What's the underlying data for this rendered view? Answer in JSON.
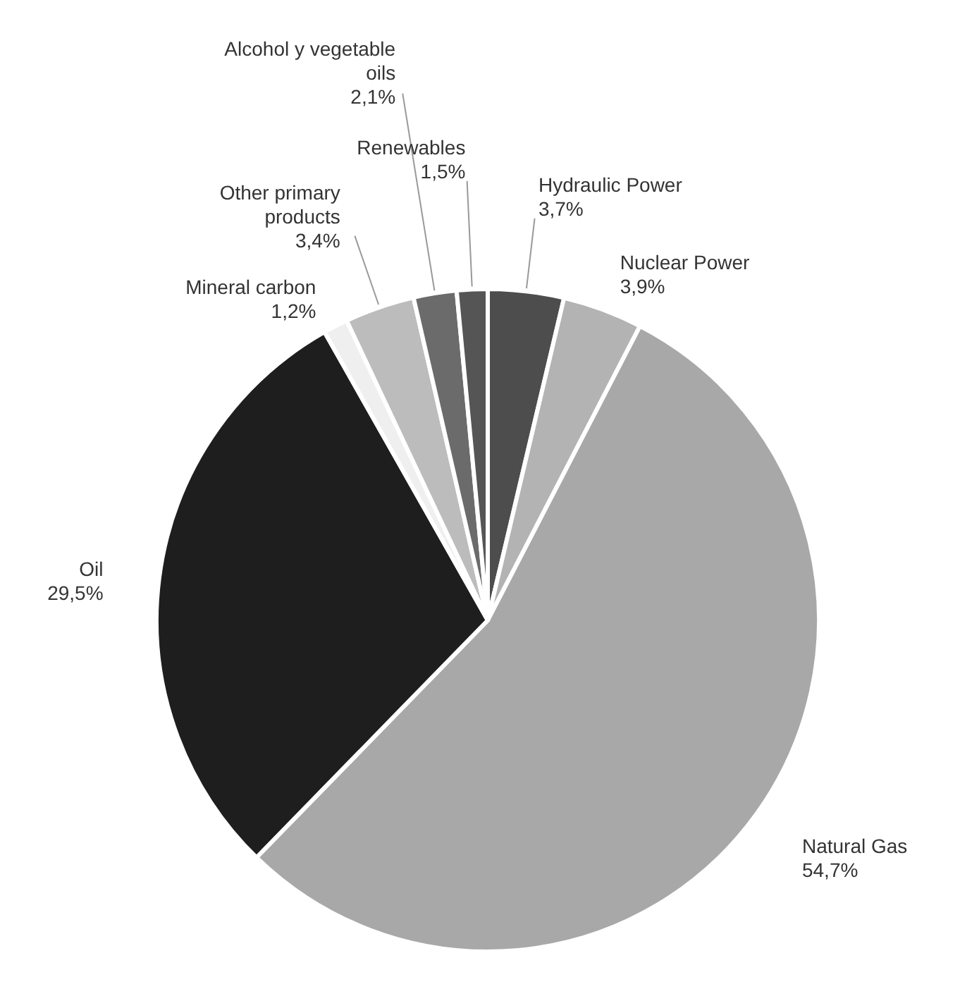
{
  "chart_data": {
    "type": "pie",
    "categories": [
      "Hydraulic Power",
      "Nuclear Power",
      "Natural Gas",
      "Oil",
      "Mineral carbon",
      "Other primary products",
      "Alcohol y vegetable oils",
      "Renewables"
    ],
    "values": [
      3.7,
      3.9,
      54.7,
      29.5,
      1.2,
      3.4,
      2.1,
      1.5
    ],
    "value_labels": [
      "3,7%",
      "3,9%",
      "54,7%",
      "29,5%",
      "1,2%",
      "3,4%",
      "2,1%",
      "1,5%"
    ],
    "colors": [
      "#4d4d4d",
      "#b3b3b3",
      "#a8a8a8",
      "#1e1e1e",
      "#efefef",
      "#bcbcbc",
      "#6b6b6b",
      "#555555"
    ]
  }
}
